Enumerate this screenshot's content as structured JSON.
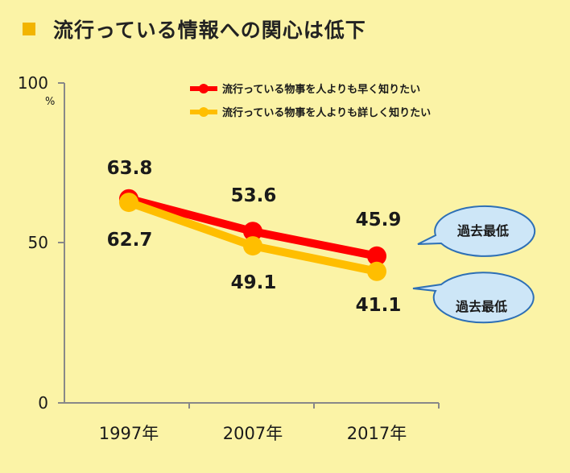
{
  "title": "流行っている情報への関心は低下",
  "colors": {
    "series1": "#ff0000",
    "series2": "#ffbe00",
    "title_marker": "#f2b400",
    "callout_fill": "#cde6f7",
    "callout_stroke": "#2d6fb5"
  },
  "chart_data": {
    "type": "line",
    "categories": [
      "1997年",
      "2007年",
      "2017年"
    ],
    "ylim": [
      0,
      100
    ],
    "y_ticks": [
      "0",
      "50",
      "100"
    ],
    "y_unit": "%",
    "series": [
      {
        "name": "流行っている物事を人よりも早く知りたい",
        "values": [
          63.8,
          53.6,
          45.9
        ],
        "labels": [
          "63.8",
          "53.6",
          "45.9"
        ],
        "color": "#ff0000"
      },
      {
        "name": "流行っている物事を人よりも詳しく知りたい",
        "values": [
          62.7,
          49.1,
          41.1
        ],
        "labels": [
          "62.7",
          "49.1",
          "41.1"
        ],
        "color": "#ffbe00"
      }
    ],
    "annotations": [
      "過去最低",
      "過去最低"
    ],
    "grid": false,
    "legend_position": "top-right"
  }
}
